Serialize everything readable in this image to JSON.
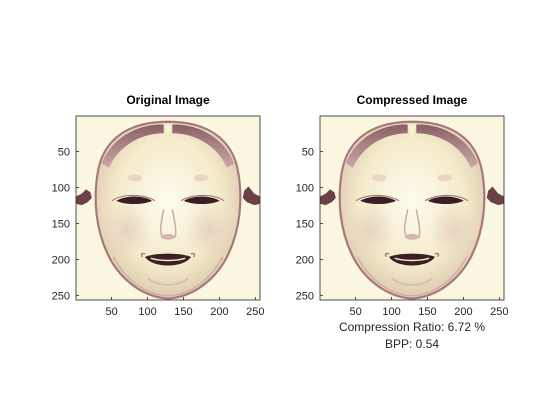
{
  "figure": {
    "background": "#ffffff",
    "axes": [
      {
        "id": "original",
        "title": "Original Image",
        "xticks": [
          50,
          100,
          150,
          200,
          250
        ],
        "yticks": [
          50,
          100,
          150,
          200,
          250
        ],
        "xlim": [
          0.5,
          256.5
        ],
        "ylim": [
          0.5,
          256.5
        ],
        "xlabel_lines": [],
        "image": "noh-mask-face"
      },
      {
        "id": "compressed",
        "title": "Compressed Image",
        "xticks": [
          50,
          100,
          150,
          200,
          250
        ],
        "yticks": [
          50,
          100,
          150,
          200,
          250
        ],
        "xlim": [
          0.5,
          256.5
        ],
        "ylim": [
          0.5,
          256.5
        ],
        "xlabel_lines": [
          "Compression Ratio: 6.72 %",
          "BPP: 0.54"
        ],
        "image": "noh-mask-face"
      }
    ],
    "colors": {
      "image_background": "#faf6df",
      "face_base": "#f7f0d2",
      "shadow": "#a6787e",
      "dark_feature": "#3a1f25",
      "axis": "#262626"
    }
  }
}
